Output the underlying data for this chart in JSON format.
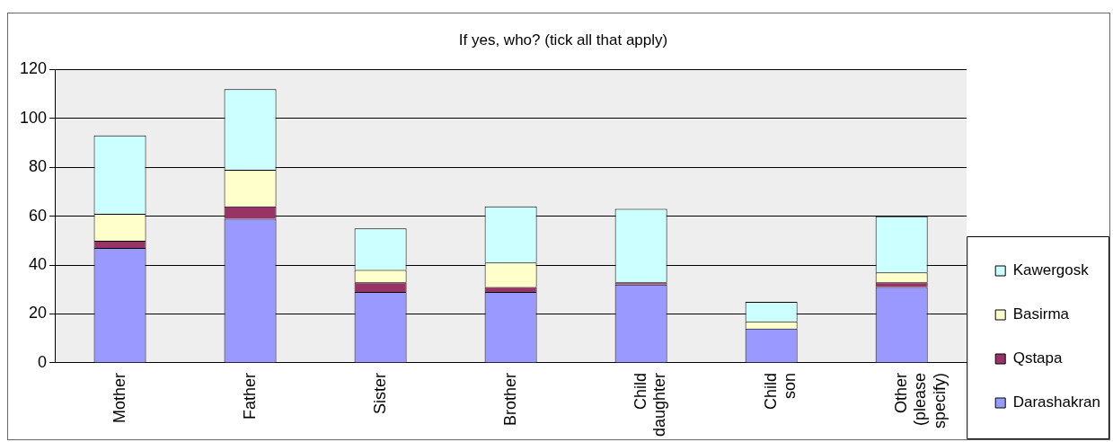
{
  "chart_data": {
    "type": "bar",
    "title": "If yes, who? (tick all that apply)",
    "categories": [
      "Mother",
      "Father",
      "Sister",
      "Brother",
      "Child daughter",
      "Child son",
      "Other (please specify)"
    ],
    "stacked": true,
    "series": [
      {
        "name": "Darashakran",
        "color": "#9999ff",
        "values": [
          47,
          59,
          29,
          29,
          32,
          14,
          31
        ]
      },
      {
        "name": "Qstapa",
        "color": "#993366",
        "values": [
          3,
          5,
          4,
          2,
          1,
          0,
          2
        ]
      },
      {
        "name": "Basirma",
        "color": "#ffffcc",
        "values": [
          11,
          15,
          5,
          10,
          0,
          3,
          4
        ]
      },
      {
        "name": "Kawergosk",
        "color": "#ccffff",
        "values": [
          32,
          33,
          17,
          23,
          30,
          8,
          23
        ]
      }
    ],
    "ylim": [
      0,
      120
    ],
    "yticks": [
      0,
      20,
      40,
      60,
      80,
      100,
      120
    ],
    "grid": "y",
    "legend": "right"
  }
}
